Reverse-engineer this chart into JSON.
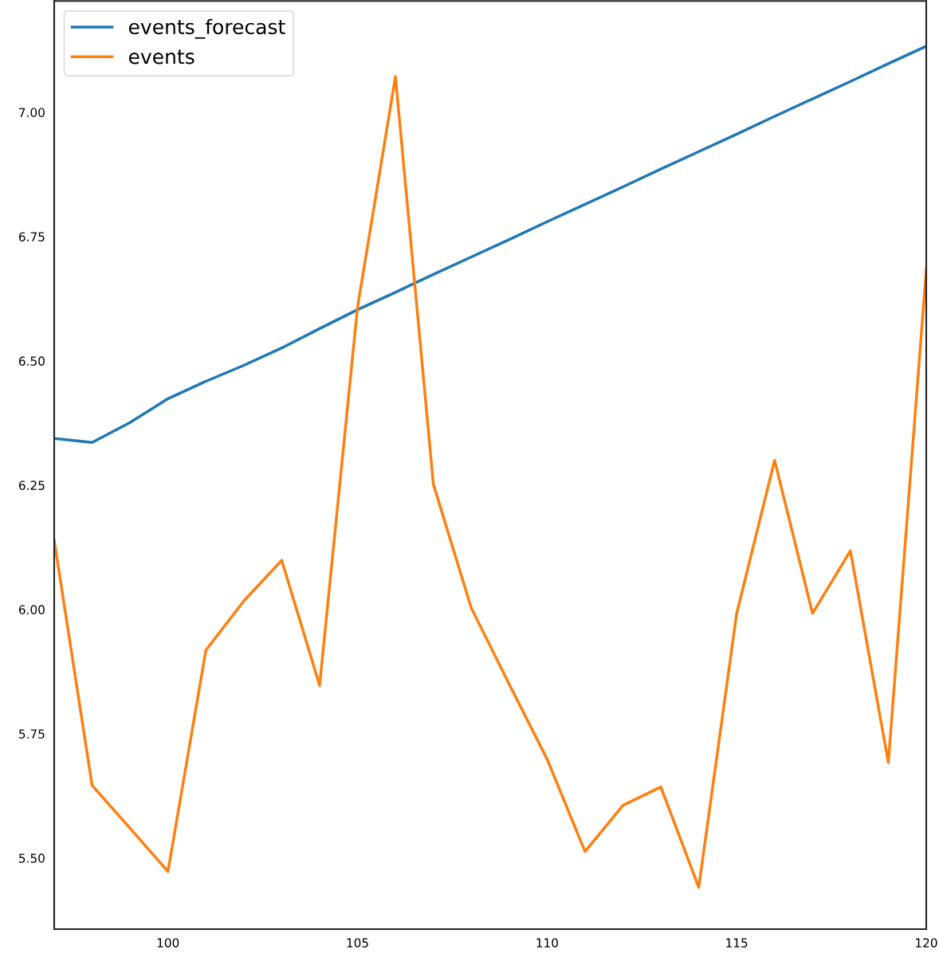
{
  "chart_data": {
    "type": "line",
    "x": [
      97,
      98,
      99,
      100,
      101,
      102,
      103,
      104,
      105,
      106,
      107,
      108,
      109,
      110,
      111,
      112,
      113,
      114,
      115,
      116,
      117,
      118,
      119,
      120
    ],
    "series": [
      {
        "name": "events_forecast",
        "color": "#1f77b4",
        "values": [
          6.344,
          6.336,
          6.376,
          6.424,
          6.459,
          6.491,
          6.526,
          6.565,
          6.603,
          6.638,
          6.674,
          6.709,
          6.744,
          6.78,
          6.815,
          6.85,
          6.886,
          6.921,
          6.956,
          6.992,
          7.027,
          7.062,
          7.098,
          7.133
        ]
      },
      {
        "name": "events",
        "color": "#ff7f0e",
        "values": [
          6.139,
          5.646,
          5.56,
          5.473,
          5.918,
          6.017,
          6.099,
          5.847,
          6.608,
          7.072,
          6.252,
          6.003,
          5.85,
          5.699,
          5.513,
          5.606,
          5.643,
          5.441,
          5.992,
          6.3,
          5.992,
          6.118,
          5.692,
          6.683
        ]
      }
    ],
    "xlim": [
      97,
      120
    ],
    "xticks": [
      100,
      105,
      110,
      115,
      120
    ],
    "ylim": [
      5.357,
      7.224
    ],
    "yticks": [
      {
        "value": 5.5,
        "label": "5.50"
      },
      {
        "value": 5.75,
        "label": "5.75"
      },
      {
        "value": 6.0,
        "label": "6.00"
      },
      {
        "value": 6.25,
        "label": "6.25"
      },
      {
        "value": 6.5,
        "label": "6.50"
      },
      {
        "value": 6.75,
        "label": "6.75"
      },
      {
        "value": 7.0,
        "label": "7.00"
      }
    ],
    "grid": false,
    "legend": "top left",
    "marker": "none",
    "line_style": "solid"
  }
}
